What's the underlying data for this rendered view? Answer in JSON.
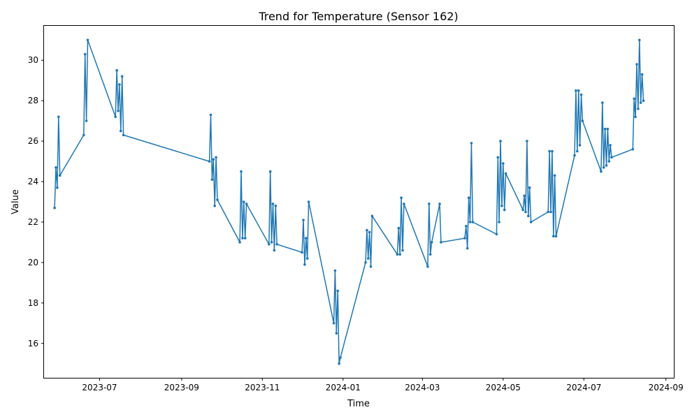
{
  "chart_data": {
    "type": "line",
    "title": "Trend for Temperature (Sensor 162)",
    "xlabel": "Time",
    "ylabel": "Value",
    "xlim": [
      "2023-05-20",
      "2024-09-07"
    ],
    "ylim": [
      14.3,
      31.7
    ],
    "x_ticks": [
      "2023-07-01",
      "2023-09-01",
      "2023-11-01",
      "2024-01-01",
      "2024-03-01",
      "2024-05-01",
      "2024-07-01",
      "2024-09-01"
    ],
    "x_tick_labels": [
      "2023-07",
      "2023-09",
      "2023-11",
      "2024-01",
      "2024-03",
      "2024-05",
      "2024-07",
      "2024-09"
    ],
    "y_ticks": [
      16,
      18,
      20,
      22,
      24,
      26,
      28,
      30
    ],
    "y_tick_labels": [
      "16",
      "18",
      "20",
      "22",
      "24",
      "26",
      "28",
      "30"
    ],
    "grid": false,
    "legend": "none",
    "line_color": "#1f77b4",
    "series": [
      {
        "x": [
          "2023-05-28",
          "2023-05-29",
          "2023-05-30",
          "2023-05-31",
          "2023-06-01",
          "2023-06-19",
          "2023-06-20",
          "2023-06-21",
          "2023-06-22",
          "2023-07-13",
          "2023-07-14",
          "2023-07-15",
          "2023-07-16",
          "2023-07-17",
          "2023-07-18",
          "2023-07-19",
          "2023-09-22",
          "2023-09-23",
          "2023-09-24",
          "2023-09-25",
          "2023-09-26",
          "2023-09-27",
          "2023-09-28",
          "2023-10-15",
          "2023-10-16",
          "2023-10-17",
          "2023-10-18",
          "2023-10-19",
          "2023-10-20",
          "2023-11-06",
          "2023-11-07",
          "2023-11-08",
          "2023-11-09",
          "2023-11-10",
          "2023-11-11",
          "2023-11-12",
          "2023-12-01",
          "2023-12-02",
          "2023-12-03",
          "2023-12-04",
          "2023-12-05",
          "2023-12-06",
          "2023-12-25",
          "2023-12-26",
          "2023-12-27",
          "2023-12-28",
          "2023-12-29",
          "2023-12-30",
          "2024-01-18",
          "2024-01-19",
          "2024-01-20",
          "2024-01-21",
          "2024-01-22",
          "2024-01-23",
          "2024-02-11",
          "2024-02-12",
          "2024-02-13",
          "2024-02-14",
          "2024-02-15",
          "2024-02-16",
          "2024-03-05",
          "2024-03-06",
          "2024-03-07",
          "2024-03-08",
          "2024-03-14",
          "2024-03-15",
          "2024-04-02",
          "2024-04-03",
          "2024-04-04",
          "2024-04-05",
          "2024-04-06",
          "2024-04-07",
          "2024-04-08",
          "2024-04-26",
          "2024-04-27",
          "2024-04-28",
          "2024-04-29",
          "2024-04-30",
          "2024-05-01",
          "2024-05-02",
          "2024-05-03",
          "2024-05-16",
          "2024-05-17",
          "2024-05-18",
          "2024-05-19",
          "2024-05-20",
          "2024-05-21",
          "2024-05-22",
          "2024-06-04",
          "2024-06-05",
          "2024-06-06",
          "2024-06-07",
          "2024-06-08",
          "2024-06-09",
          "2024-06-10",
          "2024-06-24",
          "2024-06-25",
          "2024-06-26",
          "2024-06-27",
          "2024-06-28",
          "2024-06-29",
          "2024-06-30",
          "2024-07-14",
          "2024-07-15",
          "2024-07-16",
          "2024-07-17",
          "2024-07-18",
          "2024-07-19",
          "2024-07-20",
          "2024-07-21",
          "2024-07-22",
          "2024-08-07",
          "2024-08-08",
          "2024-08-09",
          "2024-08-10",
          "2024-08-11",
          "2024-08-12",
          "2024-08-13",
          "2024-08-14",
          "2024-08-15"
        ],
        "y": [
          22.7,
          24.7,
          23.7,
          27.2,
          24.3,
          26.3,
          30.3,
          27.0,
          31.0,
          27.2,
          29.5,
          27.5,
          28.8,
          26.5,
          29.2,
          26.3,
          25.0,
          27.3,
          24.1,
          25.1,
          22.8,
          25.2,
          23.1,
          21.0,
          24.5,
          21.2,
          23.0,
          21.2,
          22.9,
          20.9,
          24.5,
          21.0,
          22.9,
          20.6,
          22.8,
          20.9,
          20.5,
          22.1,
          19.9,
          21.2,
          20.2,
          23.0,
          17.0,
          19.6,
          16.5,
          18.6,
          15.0,
          15.3,
          20.0,
          21.6,
          20.2,
          21.5,
          19.8,
          22.3,
          20.4,
          21.7,
          20.4,
          23.2,
          20.6,
          22.9,
          19.8,
          22.9,
          20.4,
          21.0,
          22.9,
          21.0,
          21.2,
          21.8,
          20.7,
          23.2,
          22.0,
          25.9,
          22.0,
          21.4,
          25.2,
          22.0,
          26.0,
          22.8,
          24.9,
          22.6,
          24.4,
          22.6,
          23.3,
          22.5,
          26.0,
          22.3,
          23.7,
          22.0,
          22.5,
          25.5,
          22.5,
          25.5,
          21.3,
          24.3,
          21.3,
          25.3,
          28.5,
          25.5,
          28.5,
          25.8,
          28.3,
          27.0,
          24.5,
          27.9,
          24.7,
          26.6,
          24.8,
          26.6,
          25.0,
          25.8,
          25.2,
          25.6,
          28.1,
          27.2,
          29.8,
          27.6,
          31.0,
          27.9,
          29.3,
          28.0
        ]
      }
    ]
  }
}
